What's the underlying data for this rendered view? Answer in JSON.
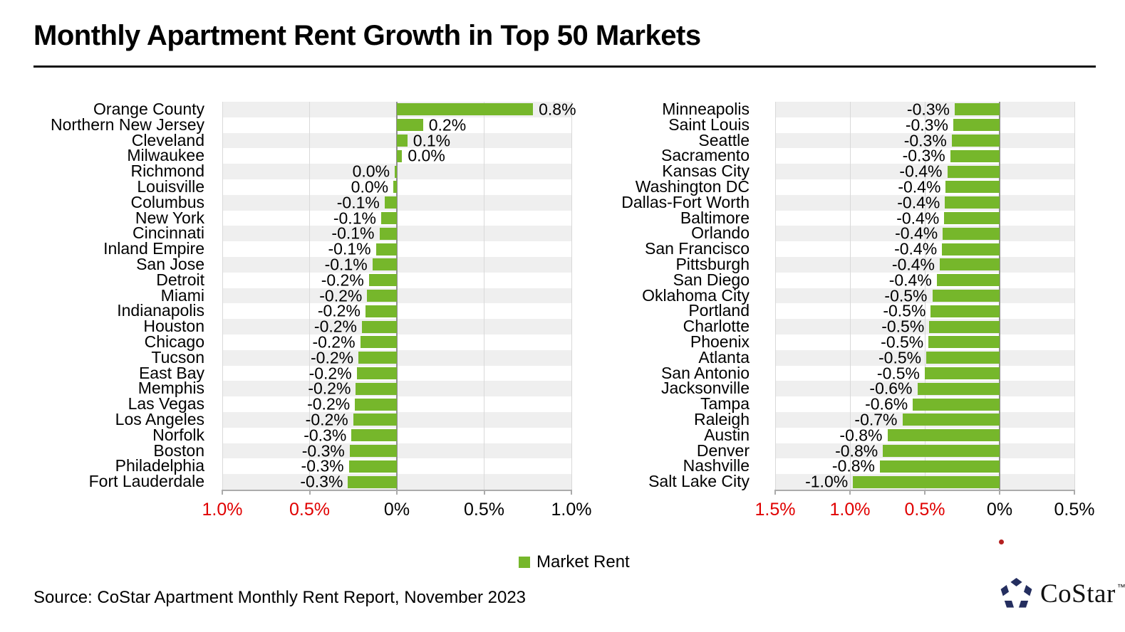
{
  "title": "Monthly Apartment Rent Growth in Top 50 Markets",
  "source": "Source: CoStar Apartment Monthly Rent Report, November 2023",
  "legend": {
    "label": "Market Rent"
  },
  "logo": {
    "text": "CoStar",
    "tm": "™"
  },
  "stray_mark": ".",
  "colors": {
    "bar_green": "#76B72B",
    "band_gray": "#EFEFEF",
    "gridline": "#D9D9D9",
    "zero_line": "#8F8F8F",
    "axis": "#ABABAB",
    "negative_tick_red": "#E00000",
    "logo_navy": "#242E5F",
    "text": "#000000"
  },
  "chart_data": [
    {
      "type": "bar",
      "orientation": "horizontal",
      "panel": "left",
      "series_name": "Market Rent",
      "xlim": [
        -1.0,
        1.0
      ],
      "grid": true,
      "ticks": [
        {
          "value": -1.0,
          "label": "1.0%",
          "red": true
        },
        {
          "value": -0.5,
          "label": "0.5%",
          "red": true
        },
        {
          "value": 0,
          "label": "0%",
          "red": false
        },
        {
          "value": 0.5,
          "label": "0.5%",
          "red": false
        },
        {
          "value": 1.0,
          "label": "1.0%",
          "red": false
        }
      ],
      "rows": [
        {
          "city": "Orange County",
          "label": "0.8%",
          "value": 0.78
        },
        {
          "city": "Northern New Jersey",
          "label": "0.2%",
          "value": 0.15
        },
        {
          "city": "Cleveland",
          "label": "0.1%",
          "value": 0.06
        },
        {
          "city": "Milwaukee",
          "label": "0.0%",
          "value": 0.03
        },
        {
          "city": "Richmond",
          "label": "0.0%",
          "value": -0.012
        },
        {
          "city": "Louisville",
          "label": "0.0%",
          "value": -0.02
        },
        {
          "city": "Columbus",
          "label": "-0.1%",
          "value": -0.07
        },
        {
          "city": "New York",
          "label": "-0.1%",
          "value": -0.09
        },
        {
          "city": "Cincinnati",
          "label": "-0.1%",
          "value": -0.1
        },
        {
          "city": "Inland Empire",
          "label": "-0.1%",
          "value": -0.12
        },
        {
          "city": "San Jose",
          "label": "-0.1%",
          "value": -0.14
        },
        {
          "city": "Detroit",
          "label": "-0.2%",
          "value": -0.16
        },
        {
          "city": "Miami",
          "label": "-0.2%",
          "value": -0.17
        },
        {
          "city": "Indianapolis",
          "label": "-0.2%",
          "value": -0.18
        },
        {
          "city": "Houston",
          "label": "-0.2%",
          "value": -0.2
        },
        {
          "city": "Chicago",
          "label": "-0.2%",
          "value": -0.21
        },
        {
          "city": "Tucson",
          "label": "-0.2%",
          "value": -0.22
        },
        {
          "city": "East Bay",
          "label": "-0.2%",
          "value": -0.23
        },
        {
          "city": "Memphis",
          "label": "-0.2%",
          "value": -0.235
        },
        {
          "city": "Las Vegas",
          "label": "-0.2%",
          "value": -0.24
        },
        {
          "city": "Los Angeles",
          "label": "-0.2%",
          "value": -0.25
        },
        {
          "city": "Norfolk",
          "label": "-0.3%",
          "value": -0.26
        },
        {
          "city": "Boston",
          "label": "-0.3%",
          "value": -0.27
        },
        {
          "city": "Philadelphia",
          "label": "-0.3%",
          "value": -0.275
        },
        {
          "city": "Fort Lauderdale",
          "label": "-0.3%",
          "value": -0.28
        }
      ]
    },
    {
      "type": "bar",
      "orientation": "horizontal",
      "panel": "right",
      "series_name": "Market Rent",
      "xlim": [
        -1.5,
        0.5
      ],
      "grid": true,
      "ticks": [
        {
          "value": -1.5,
          "label": "1.5%",
          "red": true
        },
        {
          "value": -1.0,
          "label": "1.0%",
          "red": true
        },
        {
          "value": -0.5,
          "label": "0.5%",
          "red": true
        },
        {
          "value": 0,
          "label": "0%",
          "red": false
        },
        {
          "value": 0.5,
          "label": "0.5%",
          "red": false
        }
      ],
      "rows": [
        {
          "city": "Minneapolis",
          "label": "-0.3%",
          "value": -0.3
        },
        {
          "city": "Saint Louis",
          "label": "-0.3%",
          "value": -0.31
        },
        {
          "city": "Seattle",
          "label": "-0.3%",
          "value": -0.32
        },
        {
          "city": "Sacramento",
          "label": "-0.3%",
          "value": -0.33
        },
        {
          "city": "Kansas City",
          "label": "-0.4%",
          "value": -0.35
        },
        {
          "city": "Washington DC",
          "label": "-0.4%",
          "value": -0.36
        },
        {
          "city": "Dallas-Fort Worth",
          "label": "-0.4%",
          "value": -0.365
        },
        {
          "city": "Baltimore",
          "label": "-0.4%",
          "value": -0.37
        },
        {
          "city": "Orlando",
          "label": "-0.4%",
          "value": -0.38
        },
        {
          "city": "San Francisco",
          "label": "-0.4%",
          "value": -0.385
        },
        {
          "city": "Pittsburgh",
          "label": "-0.4%",
          "value": -0.4
        },
        {
          "city": "San Diego",
          "label": "-0.4%",
          "value": -0.42
        },
        {
          "city": "Oklahoma City",
          "label": "-0.5%",
          "value": -0.45
        },
        {
          "city": "Portland",
          "label": "-0.5%",
          "value": -0.46
        },
        {
          "city": "Charlotte",
          "label": "-0.5%",
          "value": -0.47
        },
        {
          "city": "Phoenix",
          "label": "-0.5%",
          "value": -0.475
        },
        {
          "city": "Atlanta",
          "label": "-0.5%",
          "value": -0.49
        },
        {
          "city": "San Antonio",
          "label": "-0.5%",
          "value": -0.5
        },
        {
          "city": "Jacksonville",
          "label": "-0.6%",
          "value": -0.55
        },
        {
          "city": "Tampa",
          "label": "-0.6%",
          "value": -0.58
        },
        {
          "city": "Raleigh",
          "label": "-0.7%",
          "value": -0.65
        },
        {
          "city": "Austin",
          "label": "-0.8%",
          "value": -0.75
        },
        {
          "city": "Denver",
          "label": "-0.8%",
          "value": -0.78
        },
        {
          "city": "Nashville",
          "label": "-0.8%",
          "value": -0.8
        },
        {
          "city": "Salt Lake City",
          "label": "-1.0%",
          "value": -0.98
        }
      ]
    }
  ]
}
